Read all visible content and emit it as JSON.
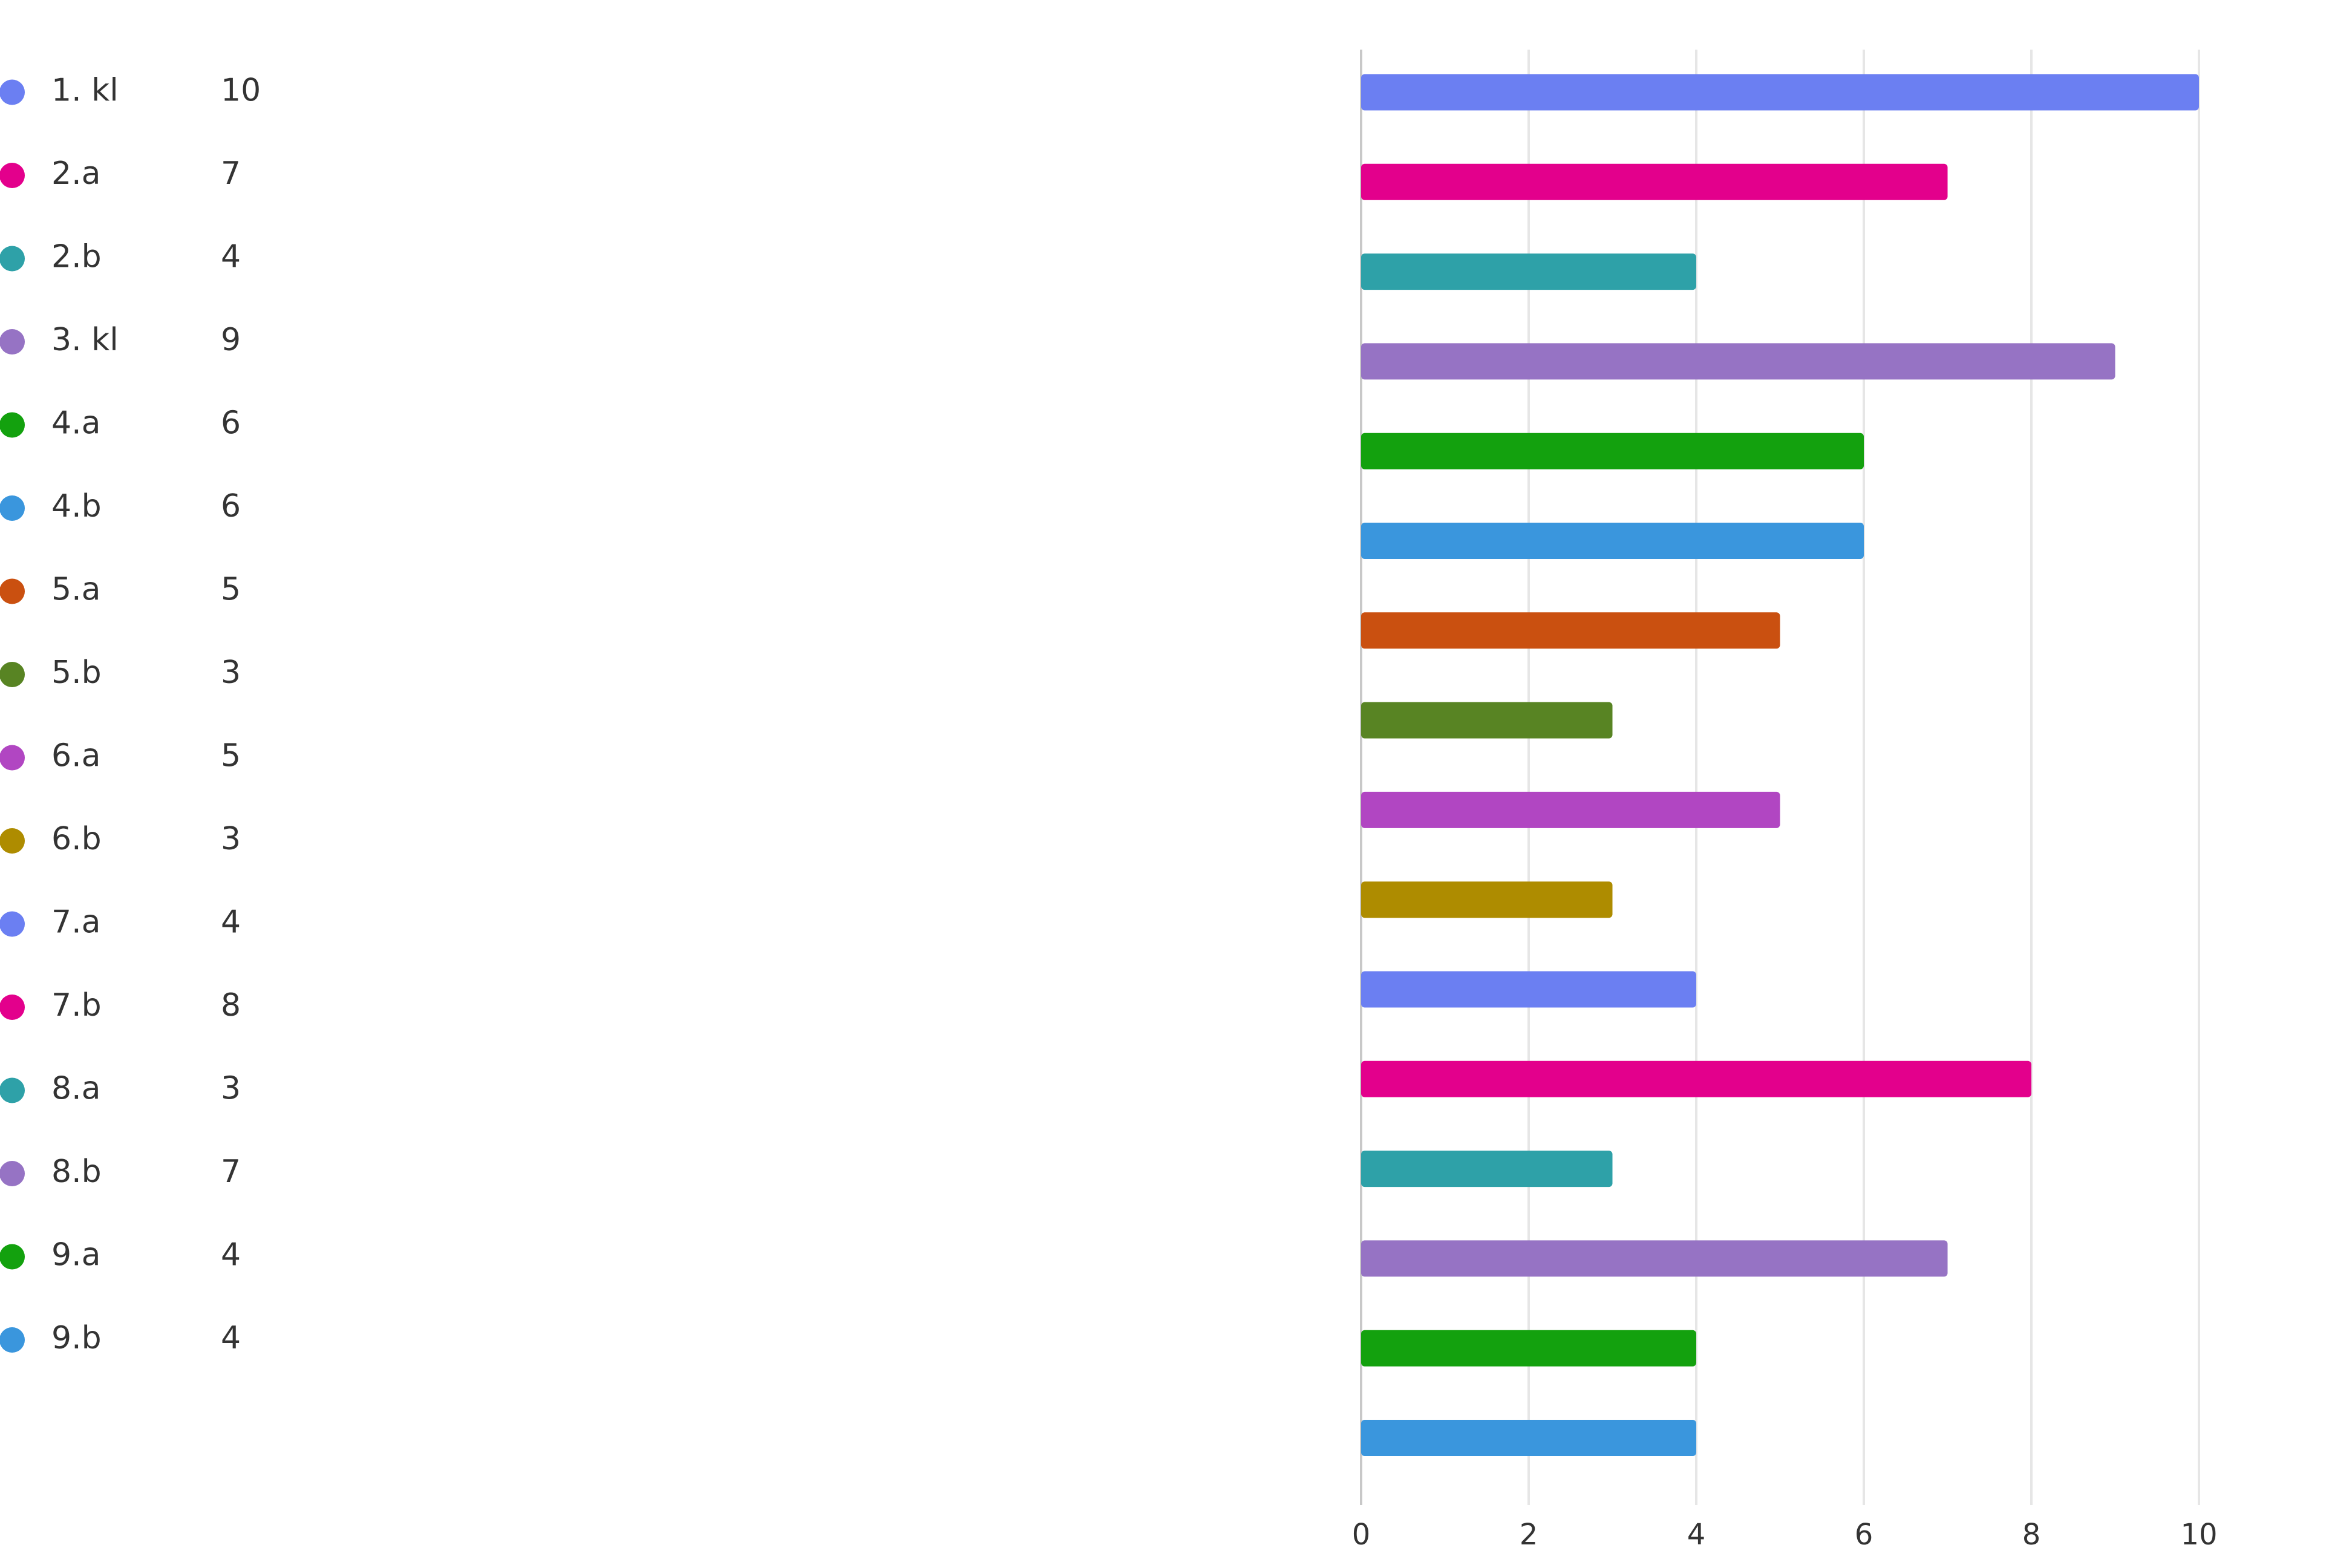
{
  "chart_data": {
    "type": "bar",
    "orientation": "horizontal",
    "categories": [
      "1. kl",
      "2.a",
      "2.b",
      "3. kl",
      "4.a",
      "4.b",
      "5.a",
      "5.b",
      "6.a",
      "6.b",
      "7.a",
      "7.b",
      "8.a",
      "8.b",
      "9.a",
      "9.b"
    ],
    "values": [
      10,
      7,
      4,
      9,
      6,
      6,
      5,
      3,
      5,
      3,
      4,
      8,
      3,
      7,
      4,
      4
    ],
    "colors": [
      "#6b7ff2",
      "#e3008c",
      "#2ea1a8",
      "#9673c4",
      "#13a10e",
      "#3a96dd",
      "#ca5010",
      "#588423",
      "#b146c2",
      "#ae8c00",
      "#6b7ff2",
      "#e3008c",
      "#2ea1a8",
      "#9673c4",
      "#13a10e",
      "#3a96dd"
    ],
    "xlim": [
      0,
      10
    ],
    "xticks": [
      0,
      2,
      4,
      6,
      8,
      10
    ],
    "grid": true,
    "legend": "left"
  }
}
